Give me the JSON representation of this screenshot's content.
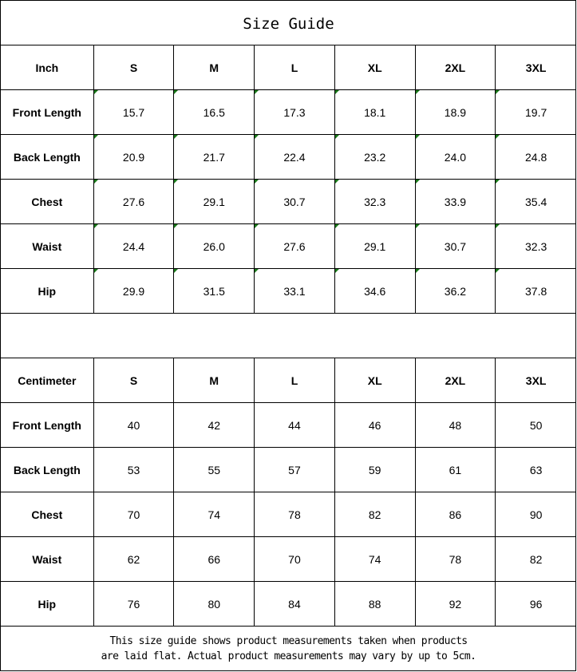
{
  "title": "Size Guide",
  "accent_marker_color": "#1a7a1a",
  "sizes": [
    "S",
    "M",
    "L",
    "XL",
    "2XL",
    "3XL"
  ],
  "inch": {
    "label": "Inch",
    "rows": [
      {
        "name": "Front Length",
        "values": [
          "15.7",
          "16.5",
          "17.3",
          "18.1",
          "18.9",
          "19.7"
        ]
      },
      {
        "name": "Back Length",
        "values": [
          "20.9",
          "21.7",
          "22.4",
          "23.2",
          "24.0",
          "24.8"
        ]
      },
      {
        "name": "Chest",
        "values": [
          "27.6",
          "29.1",
          "30.7",
          "32.3",
          "33.9",
          "35.4"
        ]
      },
      {
        "name": "Waist",
        "values": [
          "24.4",
          "26.0",
          "27.6",
          "29.1",
          "30.7",
          "32.3"
        ]
      },
      {
        "name": "Hip",
        "values": [
          "29.9",
          "31.5",
          "33.1",
          "34.6",
          "36.2",
          "37.8"
        ]
      }
    ]
  },
  "cm": {
    "label": "Centimeter",
    "rows": [
      {
        "name": "Front Length",
        "values": [
          "40",
          "42",
          "44",
          "46",
          "48",
          "50"
        ]
      },
      {
        "name": "Back Length",
        "values": [
          "53",
          "55",
          "57",
          "59",
          "61",
          "63"
        ]
      },
      {
        "name": "Chest",
        "values": [
          "70",
          "74",
          "78",
          "82",
          "86",
          "90"
        ]
      },
      {
        "name": "Waist",
        "values": [
          "62",
          "66",
          "70",
          "74",
          "78",
          "82"
        ]
      },
      {
        "name": "Hip",
        "values": [
          "76",
          "80",
          "84",
          "88",
          "92",
          "96"
        ]
      }
    ]
  },
  "footer": {
    "line1": "This size guide shows product measurements taken when products",
    "line2": "are laid flat. Actual product measurements may vary by up to 5cm."
  }
}
